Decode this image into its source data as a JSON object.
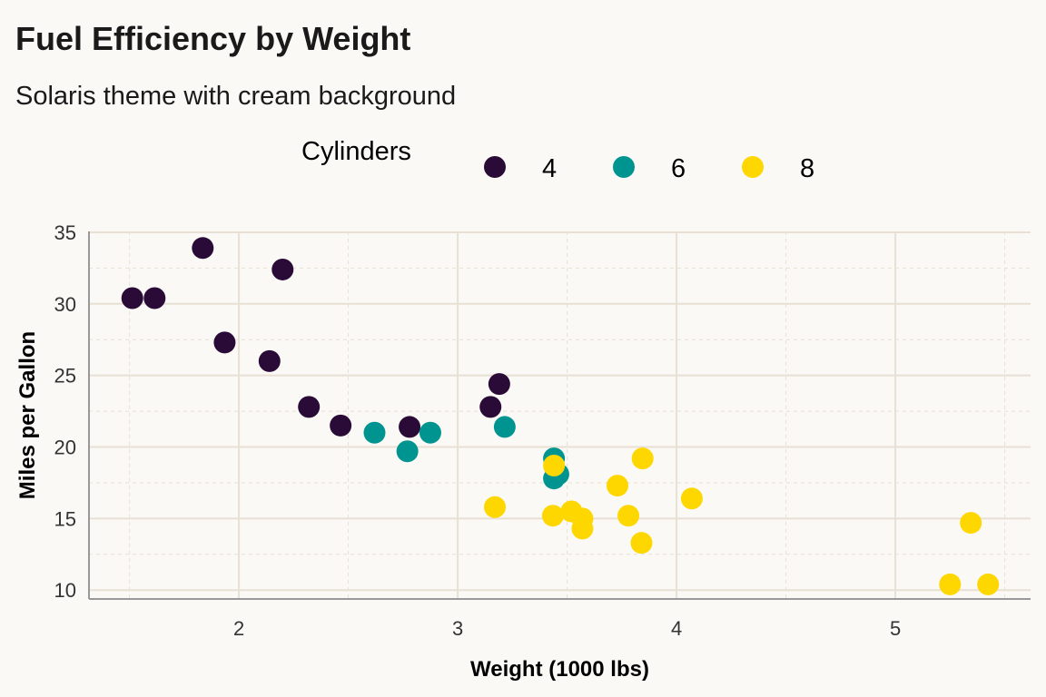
{
  "chart_data": {
    "type": "scatter",
    "title": "Fuel Efficiency by Weight",
    "subtitle": "Solaris theme with cream background",
    "xlabel": "Weight (1000 lbs)",
    "ylabel": "Miles per Gallon",
    "xlim": [
      1.315,
      5.618
    ],
    "ylim": [
      9.38,
      35.06
    ],
    "xticks": [
      2,
      3,
      4,
      5
    ],
    "yticks": [
      10,
      15,
      20,
      25,
      30,
      35
    ],
    "grid": true,
    "legend": {
      "title": "Cylinders",
      "placement": "top"
    },
    "series": [
      {
        "name": "4",
        "color": "#2a0a36",
        "x": [
          2.32,
          3.19,
          3.15,
          2.2,
          1.615,
          1.835,
          2.465,
          1.935,
          2.14,
          1.513,
          2.78
        ],
        "y": [
          22.8,
          24.4,
          22.8,
          32.4,
          30.4,
          33.9,
          21.5,
          27.3,
          26.0,
          30.4,
          21.4
        ]
      },
      {
        "name": "6",
        "color": "#009490",
        "x": [
          2.62,
          2.875,
          3.215,
          3.46,
          3.44,
          3.44,
          2.77
        ],
        "y": [
          21.0,
          21.0,
          21.4,
          18.1,
          19.2,
          17.8,
          19.7
        ]
      },
      {
        "name": "8",
        "color": "#ffd700",
        "x": [
          3.44,
          3.57,
          4.07,
          3.73,
          3.78,
          5.25,
          5.424,
          5.345,
          3.52,
          3.435,
          3.84,
          3.845,
          3.17,
          3.57
        ],
        "y": [
          18.7,
          14.3,
          16.4,
          17.3,
          15.2,
          10.4,
          10.4,
          14.7,
          15.5,
          15.2,
          13.3,
          19.2,
          15.8,
          15.0
        ]
      }
    ]
  }
}
